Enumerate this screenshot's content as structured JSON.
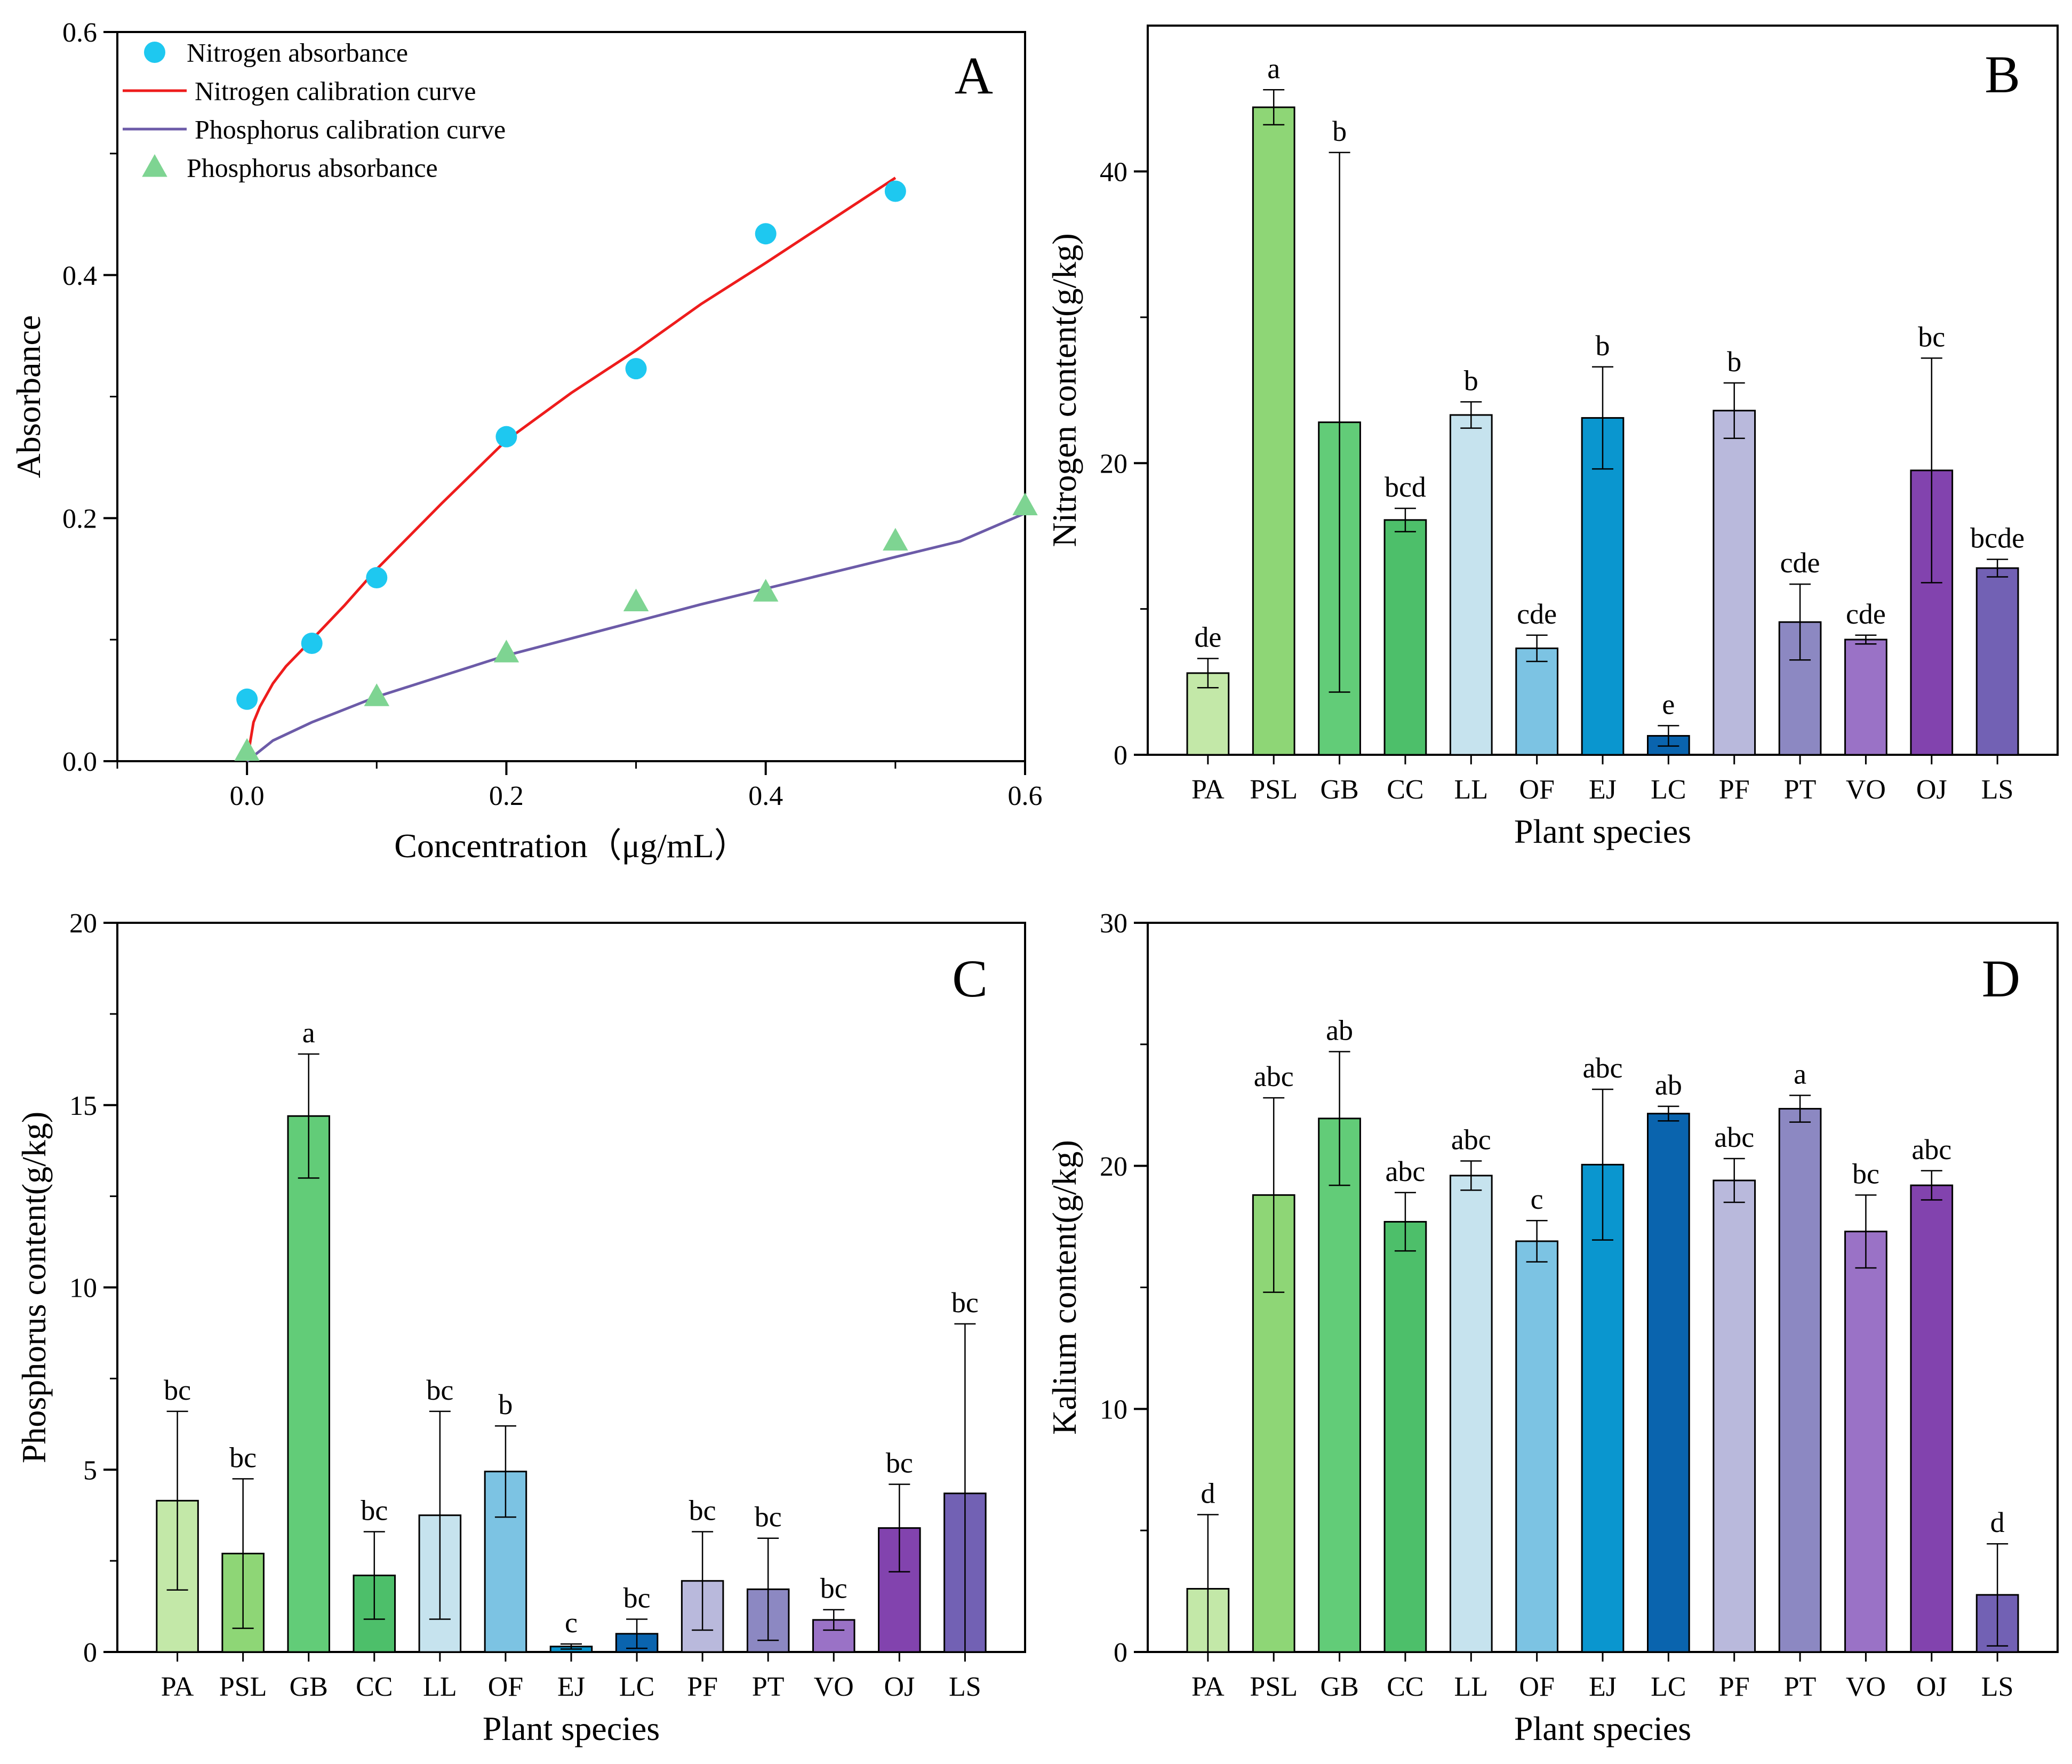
{
  "chart_data": [
    {
      "id": "A",
      "type": "scatter",
      "panel_label": "A",
      "xlabel": "Concentration（μg/mL）",
      "ylabel": "Absorbance",
      "xlim": [
        -0.1,
        0.6
      ],
      "ylim": [
        0,
        0.6
      ],
      "xticks": [
        0.0,
        0.2,
        0.4,
        0.6
      ],
      "xtick_labels": [
        "0.0",
        "0.2",
        "0.4",
        "0.6"
      ],
      "yticks": [
        0.0,
        0.2,
        0.4,
        0.6
      ],
      "ytick_labels": [
        "0.0",
        "0.2",
        "0.4",
        "0.6"
      ],
      "legend_position": "top-left",
      "legend": [
        "Nitrogen absorbance",
        "Nitrogen calibration curve",
        "Phosphorus calibration curve",
        "Phosphorus absorbance"
      ],
      "series": [
        {
          "name": "Nitrogen absorbance",
          "kind": "points",
          "marker": "circle",
          "color": "#1ec8f0",
          "x": [
            0.0,
            0.05,
            0.1,
            0.2,
            0.3,
            0.4,
            0.5
          ],
          "y": [
            0.051,
            0.097,
            0.151,
            0.267,
            0.323,
            0.434,
            0.469
          ]
        },
        {
          "name": "Phosphorus absorbance",
          "kind": "points",
          "marker": "triangle",
          "color": "#7ed492",
          "x": [
            0.0,
            0.1,
            0.2,
            0.3,
            0.4,
            0.5,
            0.6
          ],
          "y": [
            0.008,
            0.053,
            0.089,
            0.131,
            0.139,
            0.181,
            0.21
          ]
        },
        {
          "name": "Nitrogen calibration curve",
          "kind": "line",
          "color": "#ee1c1c",
          "x": [
            0.0,
            0.005,
            0.01,
            0.02,
            0.03,
            0.05,
            0.075,
            0.1,
            0.15,
            0.2,
            0.25,
            0.3,
            0.35,
            0.4,
            0.45,
            0.5
          ],
          "y": [
            0.0,
            0.032,
            0.045,
            0.064,
            0.078,
            0.1,
            0.128,
            0.158,
            0.212,
            0.264,
            0.303,
            0.338,
            0.376,
            0.41,
            0.445,
            0.48
          ]
        },
        {
          "name": "Phosphorus calibration curve",
          "kind": "line",
          "color": "#6c5ba8",
          "x": [
            0.0,
            0.02,
            0.05,
            0.1,
            0.15,
            0.2,
            0.25,
            0.3,
            0.35,
            0.4,
            0.45,
            0.5,
            0.55,
            0.6
          ],
          "y": [
            0.0,
            0.017,
            0.032,
            0.053,
            0.07,
            0.087,
            0.101,
            0.115,
            0.129,
            0.142,
            0.155,
            0.168,
            0.181,
            0.204
          ]
        }
      ]
    },
    {
      "id": "B",
      "type": "bar",
      "panel_label": "B",
      "xlabel": "Plant species",
      "ylabel": "Nitrogen content(g/kg)",
      "ylim": [
        0,
        50
      ],
      "yticks": [
        0,
        20,
        40
      ],
      "ytick_labels": [
        "0",
        "20",
        "40"
      ],
      "categories": [
        "PA",
        "PSL",
        "GB",
        "CC",
        "LL",
        "OF",
        "EJ",
        "LC",
        "PF",
        "PT",
        "VO",
        "OJ",
        "LS"
      ],
      "values": [
        5.6,
        44.4,
        22.8,
        16.1,
        23.3,
        7.3,
        23.1,
        1.3,
        23.6,
        9.1,
        7.9,
        19.5,
        12.8
      ],
      "errors": [
        1.0,
        1.2,
        18.5,
        0.8,
        0.9,
        0.9,
        3.5,
        0.7,
        1.9,
        2.6,
        0.3,
        7.7,
        0.6
      ],
      "letters": [
        "de",
        "a",
        "b",
        "bcd",
        "b",
        "cde",
        "b",
        "e",
        "b",
        "cde",
        "cde",
        "bc",
        "bcde"
      ],
      "colors": [
        "#c3e8a8",
        "#8ed676",
        "#62cc78",
        "#4dbf6a",
        "#c6e3ee",
        "#7cc3e3",
        "#0a96cf",
        "#0a64ae",
        "#b9b9dc",
        "#8c88c2",
        "#9a72c6",
        "#8243ae",
        "#7261b4"
      ]
    },
    {
      "id": "C",
      "type": "bar",
      "panel_label": "C",
      "xlabel": "Plant species",
      "ylabel": "Phosphorus content(g/kg)",
      "ylim": [
        0,
        20
      ],
      "yticks": [
        0,
        5,
        10,
        15,
        20
      ],
      "ytick_labels": [
        "0",
        "5",
        "10",
        "15",
        "20"
      ],
      "categories": [
        "PA",
        "PSL",
        "GB",
        "CC",
        "LL",
        "OF",
        "EJ",
        "LC",
        "PF",
        "PT",
        "VO",
        "OJ",
        "LS"
      ],
      "values": [
        4.15,
        2.7,
        14.7,
        2.1,
        3.75,
        4.95,
        0.15,
        0.5,
        1.95,
        1.72,
        0.88,
        3.4,
        4.35
      ],
      "errors": [
        2.45,
        2.05,
        1.7,
        1.2,
        2.85,
        1.25,
        0.07,
        0.4,
        1.35,
        1.4,
        0.28,
        1.2,
        4.65
      ],
      "letters": [
        "bc",
        "bc",
        "a",
        "bc",
        "bc",
        "b",
        "c",
        "bc",
        "bc",
        "bc",
        "bc",
        "bc",
        "bc"
      ],
      "colors": [
        "#c3e8a8",
        "#8ed676",
        "#62cc78",
        "#4dbf6a",
        "#c6e3ee",
        "#7cc3e3",
        "#0a96cf",
        "#0a64ae",
        "#b9b9dc",
        "#8c88c2",
        "#9a72c6",
        "#8243ae",
        "#7261b4"
      ]
    },
    {
      "id": "D",
      "type": "bar",
      "panel_label": "D",
      "xlabel": "Plant species",
      "ylabel": "Kalium content(g/kg)",
      "ylim": [
        0,
        30
      ],
      "yticks": [
        0,
        10,
        20,
        30
      ],
      "ytick_labels": [
        "0",
        "10",
        "20",
        "30"
      ],
      "categories": [
        "PA",
        "PSL",
        "GB",
        "CC",
        "LL",
        "OF",
        "EJ",
        "LC",
        "PF",
        "PT",
        "VO",
        "OJ",
        "LS"
      ],
      "values": [
        2.6,
        18.8,
        21.95,
        17.7,
        19.6,
        16.9,
        20.05,
        22.15,
        19.4,
        22.35,
        17.3,
        19.2,
        2.35
      ],
      "errors": [
        3.05,
        4.0,
        2.75,
        1.2,
        0.6,
        0.85,
        3.1,
        0.3,
        0.9,
        0.55,
        1.5,
        0.6,
        2.1
      ],
      "letters": [
        "d",
        "abc",
        "ab",
        "abc",
        "abc",
        "c",
        "abc",
        "ab",
        "abc",
        "a",
        "bc",
        "abc",
        "d"
      ],
      "colors": [
        "#c3e8a8",
        "#8ed676",
        "#62cc78",
        "#4dbf6a",
        "#c6e3ee",
        "#7cc3e3",
        "#0a96cf",
        "#0a64ae",
        "#b9b9dc",
        "#8c88c2",
        "#9a72c6",
        "#8243ae",
        "#7261b4"
      ]
    }
  ]
}
